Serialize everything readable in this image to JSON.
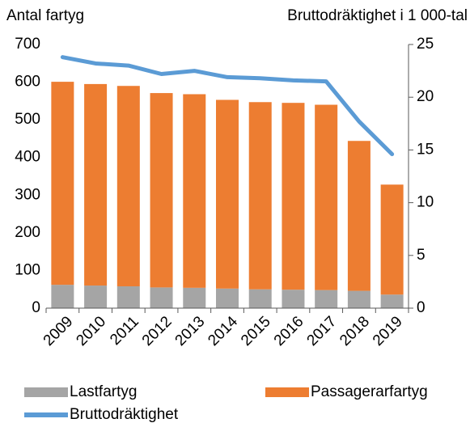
{
  "chart_data": {
    "type": "bar",
    "stacked": true,
    "y_label": "Antal fartyg",
    "y2_label": "Bruttodräktighet i 1 000-tal",
    "categories": [
      "2009",
      "2010",
      "2011",
      "2012",
      "2013",
      "2014",
      "2015",
      "2016",
      "2017",
      "2018",
      "2019"
    ],
    "series": [
      {
        "name": "Lastfartyg",
        "type": "bar",
        "color": "#a5a5a5",
        "values": [
          62,
          60,
          58,
          55,
          54,
          52,
          50,
          49,
          48,
          46,
          36
        ]
      },
      {
        "name": "Passagerarfartyg",
        "type": "bar",
        "color": "#ed7d31",
        "values": [
          539,
          535,
          532,
          516,
          514,
          501,
          497,
          496,
          492,
          398,
          292
        ]
      },
      {
        "name": "Bruttodräktighet",
        "type": "line",
        "axis": "y2",
        "color": "#5b9bd5",
        "values": [
          23.8,
          23.2,
          23.0,
          22.2,
          22.5,
          21.9,
          21.8,
          21.6,
          21.5,
          17.7,
          14.6
        ]
      }
    ],
    "ylim": [
      0,
      700
    ],
    "yticks": [
      0,
      100,
      200,
      300,
      400,
      500,
      600,
      700
    ],
    "y2lim": [
      0,
      25
    ],
    "y2ticks": [
      0,
      5,
      10,
      15,
      20,
      25
    ],
    "grid": false,
    "legend": "bottom"
  }
}
